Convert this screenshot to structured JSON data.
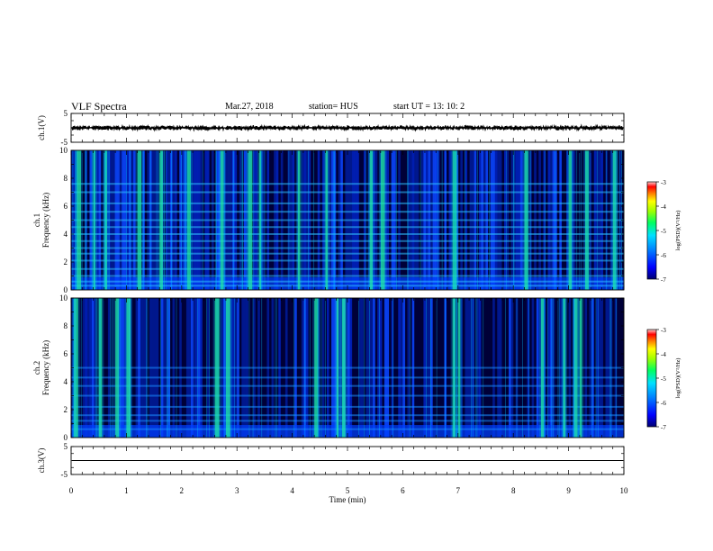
{
  "header": {
    "title": "VLF Spectra",
    "date": "Mar.27, 2018",
    "station": "station= HUS",
    "start": "start  UT =   13: 10: 2"
  },
  "colors": {
    "background_dark": "#000000",
    "spectrogram_low": "#00005a",
    "spectrogram_mid_blue": "#0a3cff",
    "spectrogram_cyan": "#00d4ff",
    "spectrogram_green": "#3cff78",
    "colorbar": [
      "#000090",
      "#0000ff",
      "#0060ff",
      "#00c0ff",
      "#00ff80",
      "#80ff00",
      "#ffff00",
      "#ff8000",
      "#ff0000",
      "#ffc0c0"
    ]
  },
  "chart_data": [
    {
      "type": "line",
      "panel": "ch1-waveform",
      "ylabel": "ch.1(V)",
      "ylim": [
        -5,
        5
      ],
      "yticks": [
        "5",
        "-5"
      ],
      "xlim": [
        0,
        10
      ],
      "series": [
        {
          "description_values": {
            "center": 0.0,
            "amplitude_approx": 0.5
          }
        }
      ]
    },
    {
      "type": "heatmap",
      "panel": "ch1-spectrogram",
      "ylabel": "ch.1\nFrequency  (kHz)",
      "ylim": [
        0,
        10
      ],
      "yticks": [
        "0",
        "2",
        "4",
        "6",
        "8",
        "10"
      ],
      "xlim": [
        0,
        10
      ],
      "colorbar": {
        "label": "log(PSD)(V²/Hz)",
        "range": [
          -7,
          -3
        ],
        "ticks": [
          "-3",
          "-4",
          "-5",
          "-6",
          "-7"
        ]
      },
      "horizontal_bands_khz": [
        0.3,
        0.6,
        1.0,
        1.5,
        2.1,
        2.6,
        3.0,
        3.5,
        4.0,
        4.5,
        5.0,
        5.6,
        6.2,
        7.0,
        7.6
      ],
      "bright_vertical_events_min": [
        0.1,
        0.4,
        0.6,
        1.2,
        1.6,
        2.1,
        2.7,
        3.2,
        3.4,
        4.1,
        4.6,
        5.4,
        5.6,
        6.9,
        8.2,
        9.0,
        9.3,
        9.8
      ]
    },
    {
      "type": "heatmap",
      "panel": "ch2-spectrogram",
      "ylabel": "ch.2\nFrequency  (kHz)",
      "ylim": [
        0,
        10
      ],
      "yticks": [
        "0",
        "2",
        "4",
        "6",
        "8",
        "10"
      ],
      "xlim": [
        0,
        10
      ],
      "colorbar": {
        "label": "log(PSD)(V²/Hz)",
        "range": [
          -7,
          -3
        ],
        "ticks": [
          "-3",
          "-4",
          "-5",
          "-6",
          "-7"
        ]
      },
      "horizontal_bands_khz": [
        0.6,
        1.2,
        1.6,
        2.2,
        3.0,
        3.7,
        4.3,
        5.0
      ],
      "bright_vertical_events_min": [
        0.05,
        0.5,
        0.8,
        1.0,
        2.6,
        2.8,
        4.4,
        4.8,
        4.9,
        6.9,
        7.0,
        8.5,
        8.9,
        9.1,
        9.2
      ]
    },
    {
      "type": "line",
      "panel": "ch3-waveform",
      "ylabel": "ch.3(V)",
      "ylim": [
        -5,
        5
      ],
      "yticks": [
        "5",
        "-5"
      ],
      "xlim": [
        0,
        10
      ],
      "series": [
        {
          "description_values": {
            "center": 0.0,
            "amplitude_approx": 0.0
          }
        }
      ]
    }
  ],
  "xaxis": {
    "label": "Time  (min)",
    "ticks": [
      "0",
      "1",
      "2",
      "3",
      "4",
      "5",
      "6",
      "7",
      "8",
      "9",
      "10"
    ]
  }
}
